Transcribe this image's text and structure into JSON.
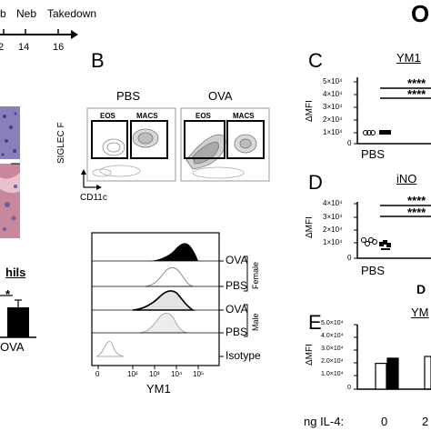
{
  "timeline": {
    "labels": [
      "b",
      "Neb",
      "Takedown"
    ],
    "ticks": [
      "2",
      "14",
      "16"
    ]
  },
  "top_right_fragment": "O",
  "panels": {
    "B": {
      "label": "B",
      "groups": [
        "PBS",
        "OVA"
      ],
      "gates": [
        "EOS",
        "MACS"
      ],
      "y_axis": "SIGLEC F",
      "x_axis": "CD11c"
    },
    "hist": {
      "x_axis": "YM1",
      "x_ticks": [
        "0",
        "10²",
        "10³",
        "10⁴",
        "10⁵"
      ],
      "rows": [
        "OVA",
        "PBS",
        "OVA",
        "PBS",
        "Isotype"
      ],
      "sex_labels": [
        "Female",
        "Male"
      ]
    },
    "C": {
      "label": "C",
      "title": "YM1",
      "y_axis": "ΔMFI",
      "y_ticks": [
        "5×10⁴",
        "4×10⁴",
        "3×10⁴",
        "2×10⁴",
        "1×10⁴",
        "0"
      ],
      "sig": [
        "****",
        "****"
      ],
      "x_group": "PBS"
    },
    "D": {
      "label": "D",
      "title": "iNO",
      "y_axis": "ΔMFI",
      "y_ticks": [
        "4×10⁴",
        "3×10⁴",
        "2×10⁴",
        "1×10⁴",
        "0"
      ],
      "sig": [
        "****",
        "****"
      ],
      "x_group": "PBS"
    },
    "D2_fragment": "D",
    "E": {
      "label": "E",
      "title": "YM",
      "y_axis": "ΔMFI",
      "y_ticks": [
        "5.0×10⁴",
        "4.0×10⁴",
        "3.0×10⁴",
        "2.0×10⁴",
        "1.0×10⁴",
        "0"
      ],
      "x_row_label": "ng IL-4:",
      "x_values": [
        "0",
        "2"
      ]
    },
    "left": {
      "title_fragment": "hils",
      "sig": "*",
      "x_group": "OVA"
    }
  },
  "chart_data": [
    {
      "type": "bar",
      "panel": "E",
      "title": "YM",
      "ylabel": "ΔMFI",
      "categories": [
        "0"
      ],
      "series": [
        {
          "values": [
            20000
          ],
          "color": "#ffffff"
        },
        {
          "values": [
            24000
          ],
          "color": "#000000"
        }
      ],
      "ylim": [
        0,
        50000
      ]
    }
  ],
  "colors": {
    "ink": "#000000",
    "tissue_pink": "#c9879b",
    "tissue_purple": "#6c5fa0"
  }
}
